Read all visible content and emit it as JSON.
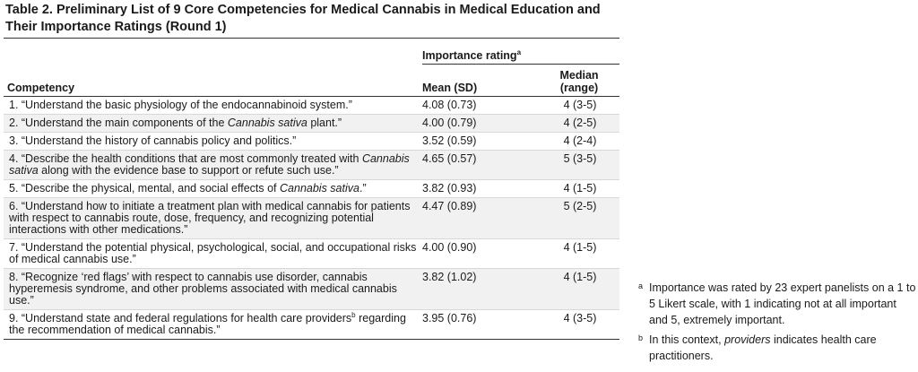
{
  "title": "Table 2. Preliminary List of 9 Core Competencies for Medical Cannabis in Medical Education and Their Importance Ratings (Round 1)",
  "header": {
    "importance_label": "Importance rating",
    "importance_sup": "a",
    "competency_label": "Competency",
    "mean_label": "Mean (SD)",
    "median_label_line1": "Median",
    "median_label_line2": "(range)"
  },
  "rows": [
    {
      "pre": "1. “Understand the basic physiology of the endocannabinoid system.”",
      "mean": "4.08 (0.73)",
      "median": "4 (3-5)"
    },
    {
      "pre": "2. “Understand the main components of the ",
      "italic": "Cannabis sativa",
      "post": " plant.”",
      "mean": "4.00 (0.79)",
      "median": "4 (2-5)"
    },
    {
      "pre": "3. “Understand the history of cannabis policy and politics.”",
      "mean": "3.52 (0.59)",
      "median": "4 (2-4)"
    },
    {
      "pre": "4. “Describe the health conditions that are most commonly treated with ",
      "italic": "Cannabis sativa",
      "post": " along with the evidence base to support or refute such use.”",
      "mean": "4.65 (0.57)",
      "median": "5 (3-5)"
    },
    {
      "pre": "5. “Describe the physical, mental, and social effects of ",
      "italic": "Cannabis sativa",
      "post": ".”",
      "mean": "3.82 (0.93)",
      "median": "4 (1-5)"
    },
    {
      "pre": "6. “Understand how to initiate a treatment plan with medical cannabis for patients with respect to cannabis route, dose, frequency, and recognizing potential interactions with other medications.”",
      "mean": "4.47 (0.89)",
      "median": "5 (2-5)"
    },
    {
      "pre": "7. “Understand the potential physical, psychological, social, and occupational risks of medical cannabis use.”",
      "mean": "4.00 (0.90)",
      "median": "4 (1-5)"
    },
    {
      "pre": "8. “Recognize ‘red flags’ with respect to cannabis use disorder, cannabis hyperemesis syndrome, and other problems associated with medical cannabis use.”",
      "mean": "3.82 (1.02)",
      "median": "4 (1-5)"
    },
    {
      "pre": "9. “Understand state and federal regulations for health care providers",
      "sup": "b",
      "post": " regarding the recommendation of medical cannabis.”",
      "mean": "3.95 (0.76)",
      "median": "4 (3-5)"
    }
  ],
  "footnotes": {
    "a": {
      "marker": "a",
      "text": "Importance was rated by 23 expert panelists on a 1 to 5 Likert scale, with 1 indicating not at all important and 5, extremely important."
    },
    "b": {
      "marker": "b",
      "text_pre": "In this context, ",
      "italic": "providers",
      "text_post": " indicates health care practitioners."
    }
  }
}
